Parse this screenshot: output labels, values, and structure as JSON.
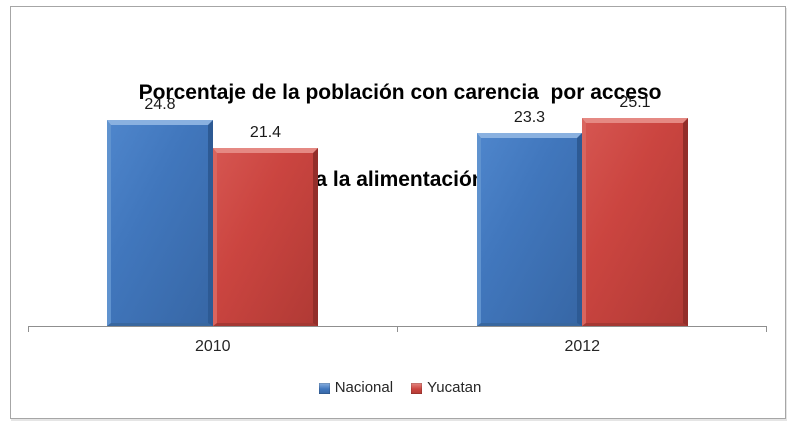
{
  "chart_data": {
    "type": "bar",
    "title": "Porcentaje de la población con carencia  por acceso a la alimentación",
    "title_lines": [
      "Porcentaje de la población con carencia  por acceso",
      "a la alimentación"
    ],
    "categories": [
      "2010",
      "2012"
    ],
    "series": [
      {
        "name": "Nacional",
        "values": [
          24.8,
          23.3
        ],
        "fill": "#4177bd",
        "fill_dark": "#3767a6",
        "face_light": "#4e85cb",
        "highlight": "#8ab1e0",
        "highlight_soft": "#6093cf",
        "shadow": "#2d5a94",
        "shadow_soft": "#38679f"
      },
      {
        "name": "Yucatan",
        "values": [
          21.4,
          25.1
        ],
        "fill": "#cb4540",
        "fill_dark": "#b13a35",
        "face_light": "#d55550",
        "highlight": "#e58983",
        "highlight_soft": "#d9655e",
        "shadow": "#932e2a",
        "shadow_soft": "#a53833"
      }
    ],
    "value_labels": true,
    "value_decimals": 1,
    "legend_position": "bottom",
    "grid": false,
    "ylim": [
      0,
      30
    ],
    "xlabel": "",
    "ylabel": "",
    "axis_color": "#8f8f8f",
    "text_color": "#262626",
    "title_color": "#000000",
    "frame_border_color": "#a6a6a6",
    "background": "#ffffff"
  }
}
